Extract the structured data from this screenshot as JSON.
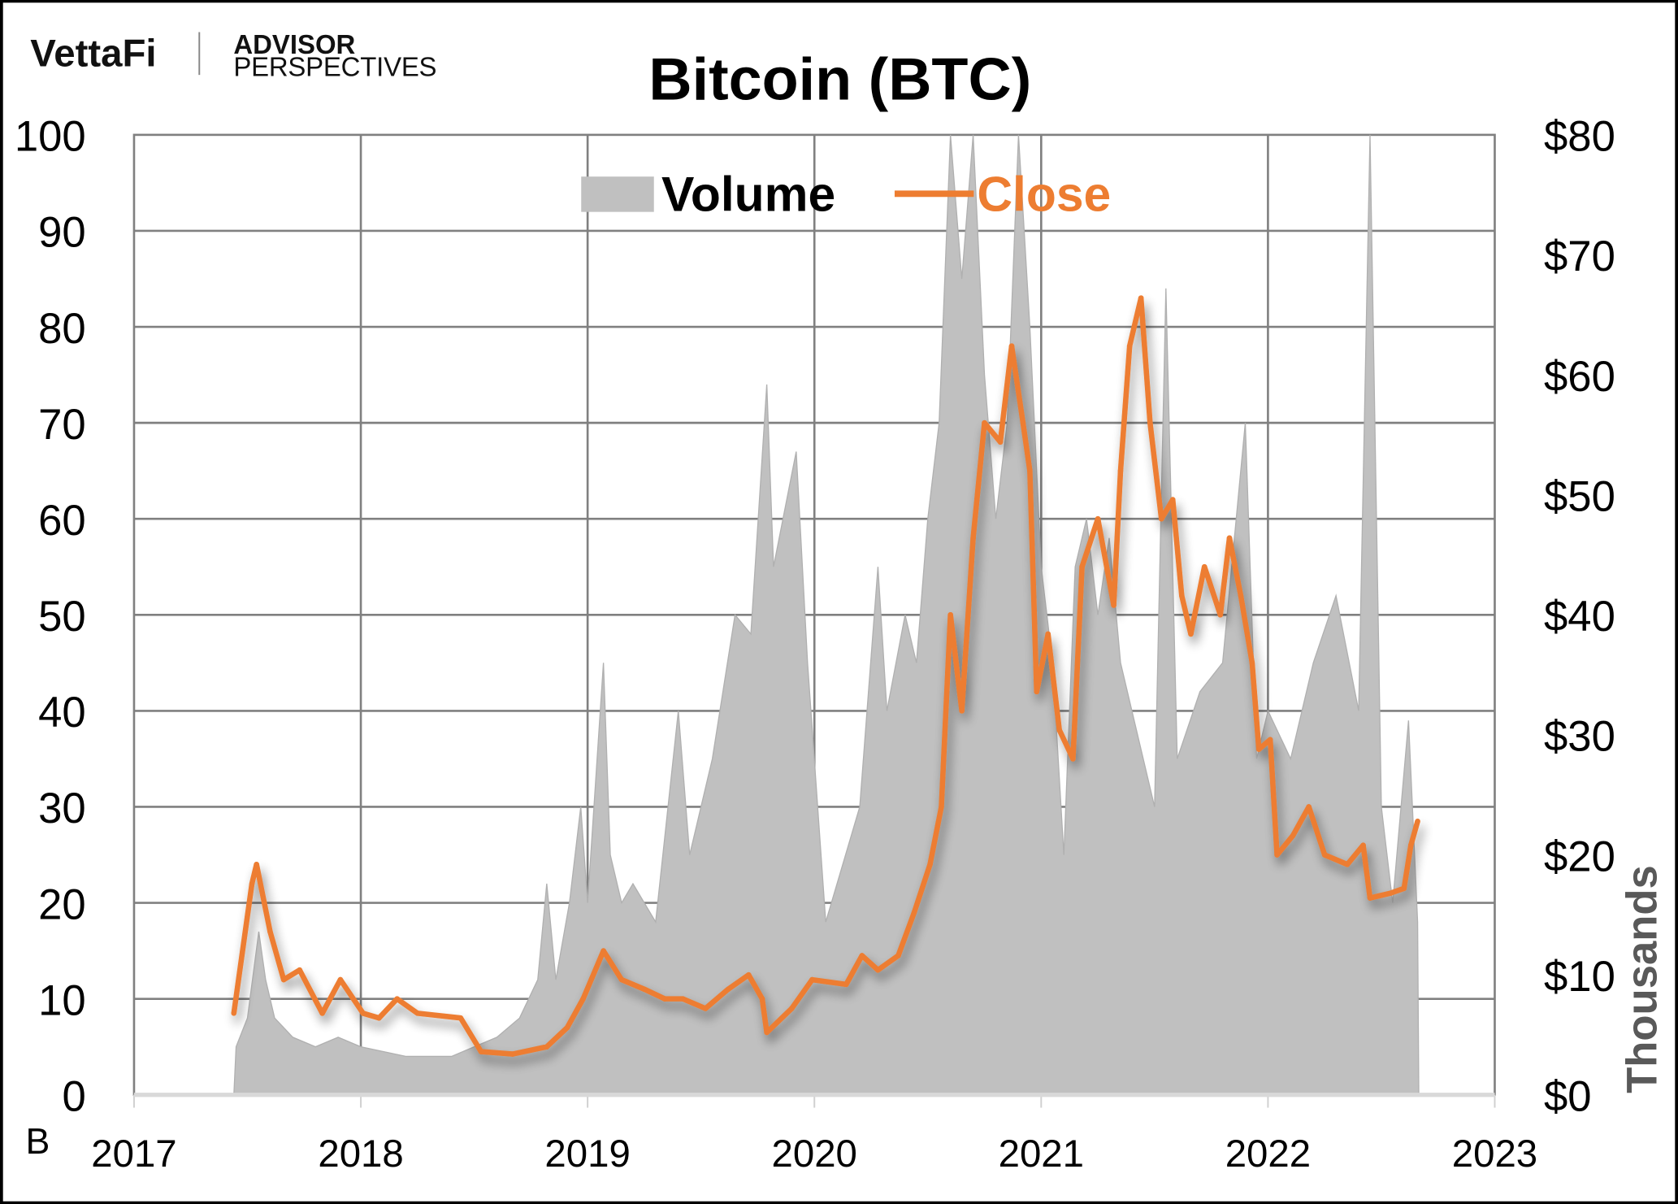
{
  "logo": {
    "brand": "VettaFi",
    "sub_brand_line1": "ADVISOR",
    "sub_brand_line2": "PERSPECTIVES"
  },
  "chart_data": {
    "type": "line",
    "title": "Bitcoin (BTC)",
    "xlabel": "",
    "ylabel_left": "B",
    "ylabel_right": "Thousands",
    "xlim": [
      2017,
      2023
    ],
    "ylim_left": [
      0,
      100
    ],
    "ylim_right": [
      0,
      80
    ],
    "x_ticks": [
      "2017",
      "2018",
      "2019",
      "2020",
      "2021",
      "2022",
      "2023"
    ],
    "y_ticks_left": [
      "0",
      "10",
      "20",
      "30",
      "40",
      "50",
      "60",
      "70",
      "80",
      "90",
      "100"
    ],
    "y_ticks_right": [
      "$0",
      "$10",
      "$20",
      "$30",
      "$40",
      "$50",
      "$60",
      "$70",
      "$80"
    ],
    "grid": true,
    "legend_position": "top-center",
    "colors": {
      "volume": "#c0c0c0",
      "close": "#ed7d31",
      "grid": "#808080"
    },
    "series": [
      {
        "name": "Volume",
        "type": "area",
        "axis": "left",
        "unit": "billions",
        "x": [
          2017.44,
          2017.45,
          2017.5,
          2017.55,
          2017.58,
          2017.62,
          2017.7,
          2017.8,
          2017.9,
          2018.0,
          2018.2,
          2018.4,
          2018.5,
          2018.6,
          2018.7,
          2018.78,
          2018.82,
          2018.86,
          2018.92,
          2018.97,
          2019.0,
          2019.07,
          2019.1,
          2019.15,
          2019.2,
          2019.3,
          2019.4,
          2019.45,
          2019.55,
          2019.65,
          2019.72,
          2019.79,
          2019.82,
          2019.92,
          2019.97,
          2020.05,
          2020.1,
          2020.2,
          2020.28,
          2020.32,
          2020.4,
          2020.45,
          2020.5,
          2020.55,
          2020.6,
          2020.65,
          2020.7,
          2020.75,
          2020.8,
          2020.85,
          2020.9,
          2020.95,
          2021.0,
          2021.05,
          2021.1,
          2021.15,
          2021.2,
          2021.25,
          2021.3,
          2021.35,
          2021.45,
          2021.5,
          2021.55,
          2021.6,
          2021.7,
          2021.8,
          2021.9,
          2021.95,
          2022.0,
          2022.1,
          2022.2,
          2022.3,
          2022.4,
          2022.45,
          2022.5,
          2022.55,
          2022.62,
          2022.66,
          2022.665
        ],
        "values": [
          0,
          5,
          8,
          17,
          12,
          8,
          6,
          5,
          6,
          5,
          4,
          4,
          5,
          6,
          8,
          12,
          22,
          12,
          20,
          30,
          20,
          45,
          25,
          20,
          22,
          18,
          40,
          25,
          35,
          50,
          48,
          74,
          55,
          67,
          45,
          18,
          22,
          30,
          55,
          40,
          50,
          45,
          60,
          70,
          100,
          85,
          100,
          75,
          60,
          70,
          100,
          80,
          55,
          45,
          25,
          55,
          60,
          50,
          58,
          45,
          35,
          30,
          84,
          35,
          42,
          45,
          70,
          35,
          40,
          35,
          45,
          52,
          40,
          100,
          30,
          20,
          39,
          18,
          0
        ]
      },
      {
        "name": "Close",
        "type": "line",
        "axis": "right",
        "unit": "thousands USD",
        "x": [
          2017.44,
          2017.52,
          2017.54,
          2017.6,
          2017.66,
          2017.73,
          2017.83,
          2017.91,
          2018.01,
          2018.08,
          2018.16,
          2018.25,
          2018.44,
          2018.53,
          2018.67,
          2018.82,
          2018.91,
          2018.98,
          2019.07,
          2019.15,
          2019.25,
          2019.34,
          2019.42,
          2019.52,
          2019.62,
          2019.71,
          2019.77,
          2019.79,
          2019.9,
          2019.99,
          2020.14,
          2020.21,
          2020.28,
          2020.37,
          2020.44,
          2020.51,
          2020.56,
          2020.6,
          2020.65,
          2020.7,
          2020.75,
          2020.82,
          2020.87,
          2020.92,
          2020.95,
          2020.98,
          2021.03,
          2021.08,
          2021.14,
          2021.18,
          2021.25,
          2021.32,
          2021.35,
          2021.39,
          2021.44,
          2021.48,
          2021.53,
          2021.58,
          2021.62,
          2021.66,
          2021.72,
          2021.79,
          2021.83,
          2021.88,
          2021.93,
          2021.96,
          2022.01,
          2022.04,
          2022.11,
          2022.18,
          2022.25,
          2022.35,
          2022.42,
          2022.45,
          2022.54,
          2022.6,
          2022.63,
          2022.66
        ],
        "values": [
          6.8,
          17.6,
          19.2,
          13.6,
          9.6,
          10.4,
          6.8,
          9.6,
          6.8,
          6.4,
          8,
          6.8,
          6.4,
          3.6,
          3.4,
          4,
          5.6,
          8,
          12,
          9.6,
          8.8,
          8,
          8,
          7.2,
          8.8,
          10,
          8,
          5.2,
          7.2,
          9.6,
          9.2,
          11.6,
          10.4,
          11.6,
          15.2,
          19.2,
          24,
          40,
          32,
          46.4,
          56,
          54.4,
          62.4,
          56,
          52,
          33.6,
          38.4,
          30.4,
          28,
          44,
          48,
          40.8,
          52,
          62.4,
          66.4,
          56,
          48,
          49.6,
          41.6,
          38.4,
          44,
          40,
          46.4,
          41.6,
          36,
          28.8,
          29.6,
          20,
          21.6,
          24,
          20,
          19.2,
          20.8,
          16.4,
          16.8,
          17.2,
          20.8,
          22.8
        ]
      }
    ]
  }
}
